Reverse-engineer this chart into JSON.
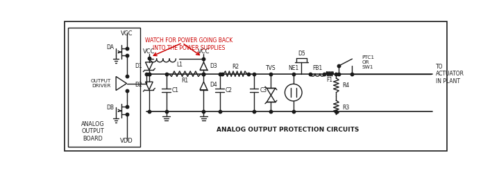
{
  "bg_color": "#ffffff",
  "lc": "#1a1a1a",
  "rc": "#cc0000",
  "labels": {
    "vcc": "VCC",
    "vdd": "VDD",
    "da": "DA",
    "db": "DB",
    "output_driver": "OUTPUT\nDRIVER",
    "analog_output_board": "ANALOG\nOUTPUT\nBOARD",
    "vcc1": "VCC",
    "vcc2": "VCC",
    "l1": "L1",
    "d1": "D1",
    "d2": "D2",
    "d3": "D3",
    "d4": "D4",
    "r1": "R1",
    "c1": "C1",
    "c2": "C2",
    "c3": "C3",
    "r2": "R2",
    "tvs": "TVS",
    "ne1": "NE1",
    "fb1": "FB1",
    "d5": "D5",
    "r3": "R3",
    "r4": "R4",
    "f1": "F1",
    "ptc1_sw1": "PTC1\nOR\nSW1",
    "to_actuator": "TO\nACTUATOR\nIN PLANT",
    "bottom_label": "ANALOG OUTPUT PROTECTION CIRCUITS",
    "arrow_text": "WATCH FOR POWER GOING BACK\nINTO THE POWER SUPPLIES"
  }
}
